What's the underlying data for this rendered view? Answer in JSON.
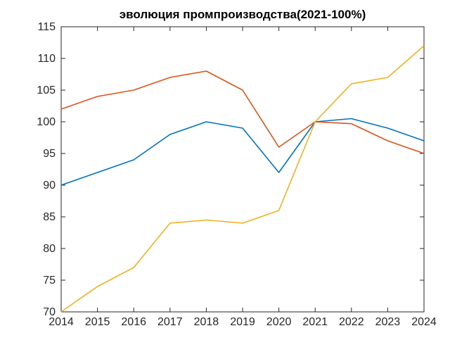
{
  "chart_data": {
    "type": "line",
    "title": "эволюция промпроизводства(2021-100%)",
    "xlabel": "",
    "ylabel": "",
    "x": [
      2014,
      2015,
      2016,
      2017,
      2018,
      2019,
      2020,
      2021,
      2022,
      2023,
      2024
    ],
    "xlim": [
      2014,
      2024
    ],
    "ylim": [
      70,
      115
    ],
    "xticks": [
      2014,
      2015,
      2016,
      2017,
      2018,
      2019,
      2020,
      2021,
      2022,
      2023,
      2024
    ],
    "yticks": [
      70,
      75,
      80,
      85,
      90,
      95,
      100,
      105,
      110,
      115
    ],
    "grid": false,
    "legend": "none",
    "box": true,
    "tick_direction": "in",
    "axis_color": "#262626",
    "background_color": "#ffffff",
    "series": [
      {
        "name": "blue",
        "color": "#0072BD",
        "values": [
          90,
          92,
          94,
          98,
          100,
          99,
          92,
          100,
          100.5,
          99,
          97
        ]
      },
      {
        "name": "orange",
        "color": "#D95319",
        "values": [
          102,
          104,
          105,
          107,
          108,
          105,
          96,
          100,
          99.7,
          97,
          95
        ]
      },
      {
        "name": "yellow",
        "color": "#EDB120",
        "values": [
          70,
          74,
          77,
          84,
          84.5,
          84,
          86,
          100,
          106,
          107,
          112
        ]
      }
    ]
  }
}
